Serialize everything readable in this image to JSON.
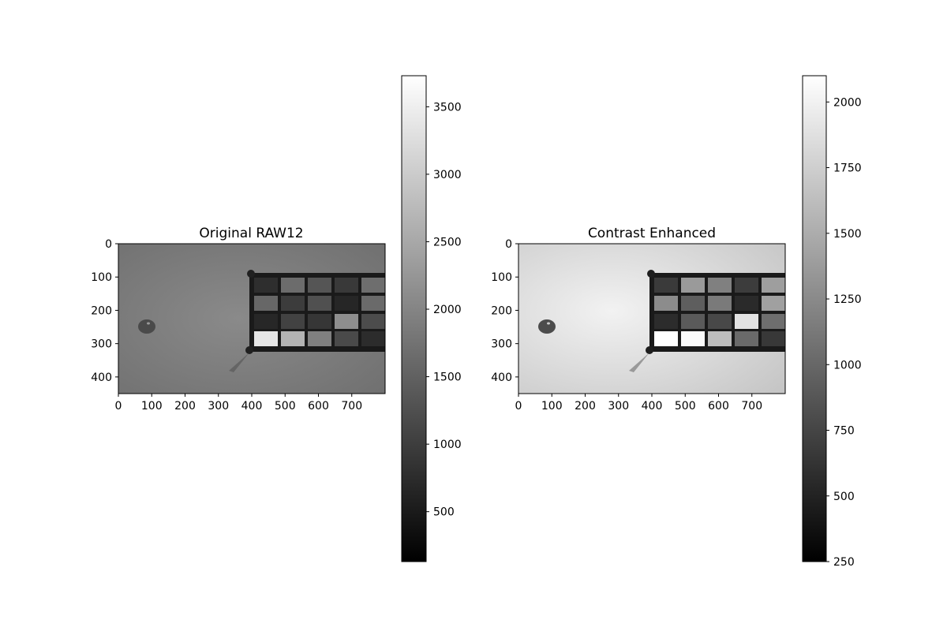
{
  "chart_data": [
    {
      "type": "heatmap",
      "title": "Original RAW12",
      "colormap": "gray",
      "image_extent": {
        "x": [
          0,
          800
        ],
        "y": [
          450,
          0
        ]
      },
      "xticks": [
        0,
        100,
        200,
        300,
        400,
        500,
        600,
        700
      ],
      "yticks": [
        0,
        100,
        200,
        300,
        400
      ],
      "xtick_labels": [
        "0",
        "100",
        "200",
        "300",
        "400",
        "500",
        "600",
        "700"
      ],
      "ytick_labels": [
        "0",
        "100",
        "200",
        "300",
        "400"
      ],
      "colorbar": {
        "range": [
          130,
          3730
        ],
        "ticks": [
          500,
          1000,
          1500,
          2000,
          2500,
          3000,
          3500
        ],
        "tick_labels": [
          "500",
          "1000",
          "1500",
          "2000",
          "2500",
          "3000",
          "3500"
        ]
      },
      "grid": false
    },
    {
      "type": "heatmap",
      "title": "Contrast Enhanced",
      "colormap": "gray",
      "image_extent": {
        "x": [
          0,
          800
        ],
        "y": [
          450,
          0
        ]
      },
      "xticks": [
        0,
        100,
        200,
        300,
        400,
        500,
        600,
        700
      ],
      "yticks": [
        0,
        100,
        200,
        300,
        400
      ],
      "xtick_labels": [
        "0",
        "100",
        "200",
        "300",
        "400",
        "500",
        "600",
        "700"
      ],
      "ytick_labels": [
        "0",
        "100",
        "200",
        "300",
        "400"
      ],
      "colorbar": {
        "range": [
          250,
          2100
        ],
        "ticks": [
          250,
          500,
          750,
          1000,
          1250,
          1500,
          1750,
          2000
        ],
        "tick_labels": [
          "250",
          "500",
          "750",
          "1000",
          "1250",
          "1500",
          "1750",
          "2000"
        ]
      },
      "grid": false
    }
  ]
}
